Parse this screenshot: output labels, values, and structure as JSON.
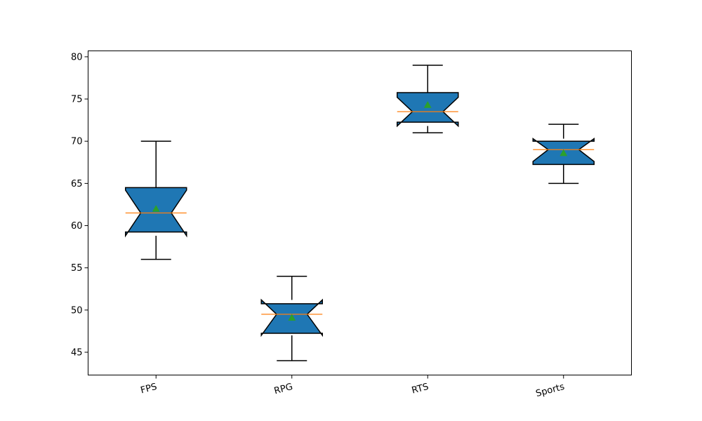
{
  "chart_data": {
    "type": "box",
    "title": "",
    "xlabel": "",
    "ylabel": "",
    "categories": [
      "FPS",
      "RPG",
      "RTS",
      "Sports"
    ],
    "ylim": [
      42.3,
      80.7
    ],
    "yticks": [
      45,
      50,
      55,
      60,
      65,
      70,
      75,
      80
    ],
    "notched": true,
    "show_means": true,
    "grid": false,
    "boxes": [
      {
        "label": "FPS",
        "whisker_low": 56,
        "q1": 59.25,
        "median": 61.5,
        "q3": 64.5,
        "whisker_high": 70,
        "mean": 62.0,
        "notch_low": 58.8,
        "notch_high": 64.2
      },
      {
        "label": "RPG",
        "whisker_low": 44,
        "q1": 47.25,
        "median": 49.5,
        "q3": 50.75,
        "whisker_high": 54,
        "mean": 49.1,
        "notch_low": 47.0,
        "notch_high": 51.2
      },
      {
        "label": "RTS",
        "whisker_low": 71,
        "q1": 72.25,
        "median": 73.5,
        "q3": 75.75,
        "whisker_high": 79,
        "mean": 74.3,
        "notch_low": 71.8,
        "notch_high": 75.2
      },
      {
        "label": "Sports",
        "whisker_low": 65,
        "q1": 67.25,
        "median": 69.0,
        "q3": 70.0,
        "whisker_high": 72,
        "mean": 68.6,
        "notch_low": 67.6,
        "notch_high": 70.3
      }
    ],
    "colors": {
      "box_fill": "#1f77b4",
      "median_line": "#ff7f0e",
      "mean_marker": "#2ca02c",
      "edge": "#000000"
    }
  }
}
